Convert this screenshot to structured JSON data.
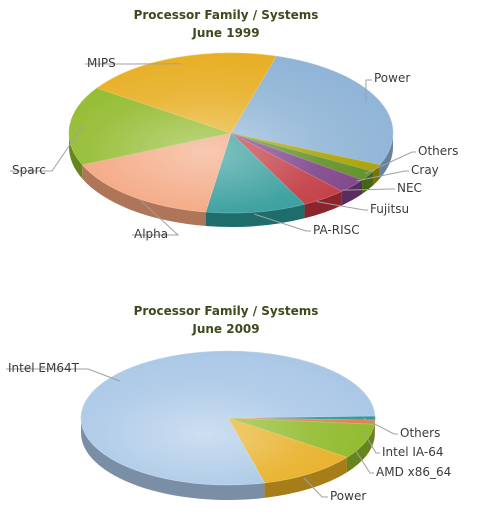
{
  "chart_data": [
    {
      "type": "pie",
      "title": "Processor Family / Systems",
      "subtitle": "June 1999",
      "slices": [
        {
          "label": "Power",
          "value": 27,
          "color": "#8fb4d6"
        },
        {
          "label": "Others",
          "value": 1.5,
          "color": "#a8a000"
        },
        {
          "label": "Cray",
          "value": 2,
          "color": "#5c8d1f"
        },
        {
          "label": "NEC",
          "value": 3,
          "color": "#7a3e86"
        },
        {
          "label": "Fujitsu",
          "value": 4.5,
          "color": "#c0343c"
        },
        {
          "label": "PA-RISC",
          "value": 10,
          "color": "#2a9896"
        },
        {
          "label": "Alpha",
          "value": 16,
          "color": "#f3a27a"
        },
        {
          "label": "Sparc",
          "value": 16,
          "color": "#8fb928"
        },
        {
          "label": "MIPS",
          "value": 20,
          "color": "#e7ae22"
        }
      ]
    },
    {
      "type": "pie",
      "title": "Processor Family / Systems",
      "subtitle": "June 2009",
      "slices": [
        {
          "label": "Others",
          "value": 1,
          "color": "#2a9896"
        },
        {
          "label": "Intel IA-64",
          "value": 1,
          "color": "#e57b4c"
        },
        {
          "label": "AMD x86_64",
          "value": 8.5,
          "color": "#8fb928"
        },
        {
          "label": "Power",
          "value": 11,
          "color": "#e7ae22"
        },
        {
          "label": "Intel EM64T",
          "value": 78.5,
          "color": "#a9c7e6"
        }
      ]
    }
  ]
}
